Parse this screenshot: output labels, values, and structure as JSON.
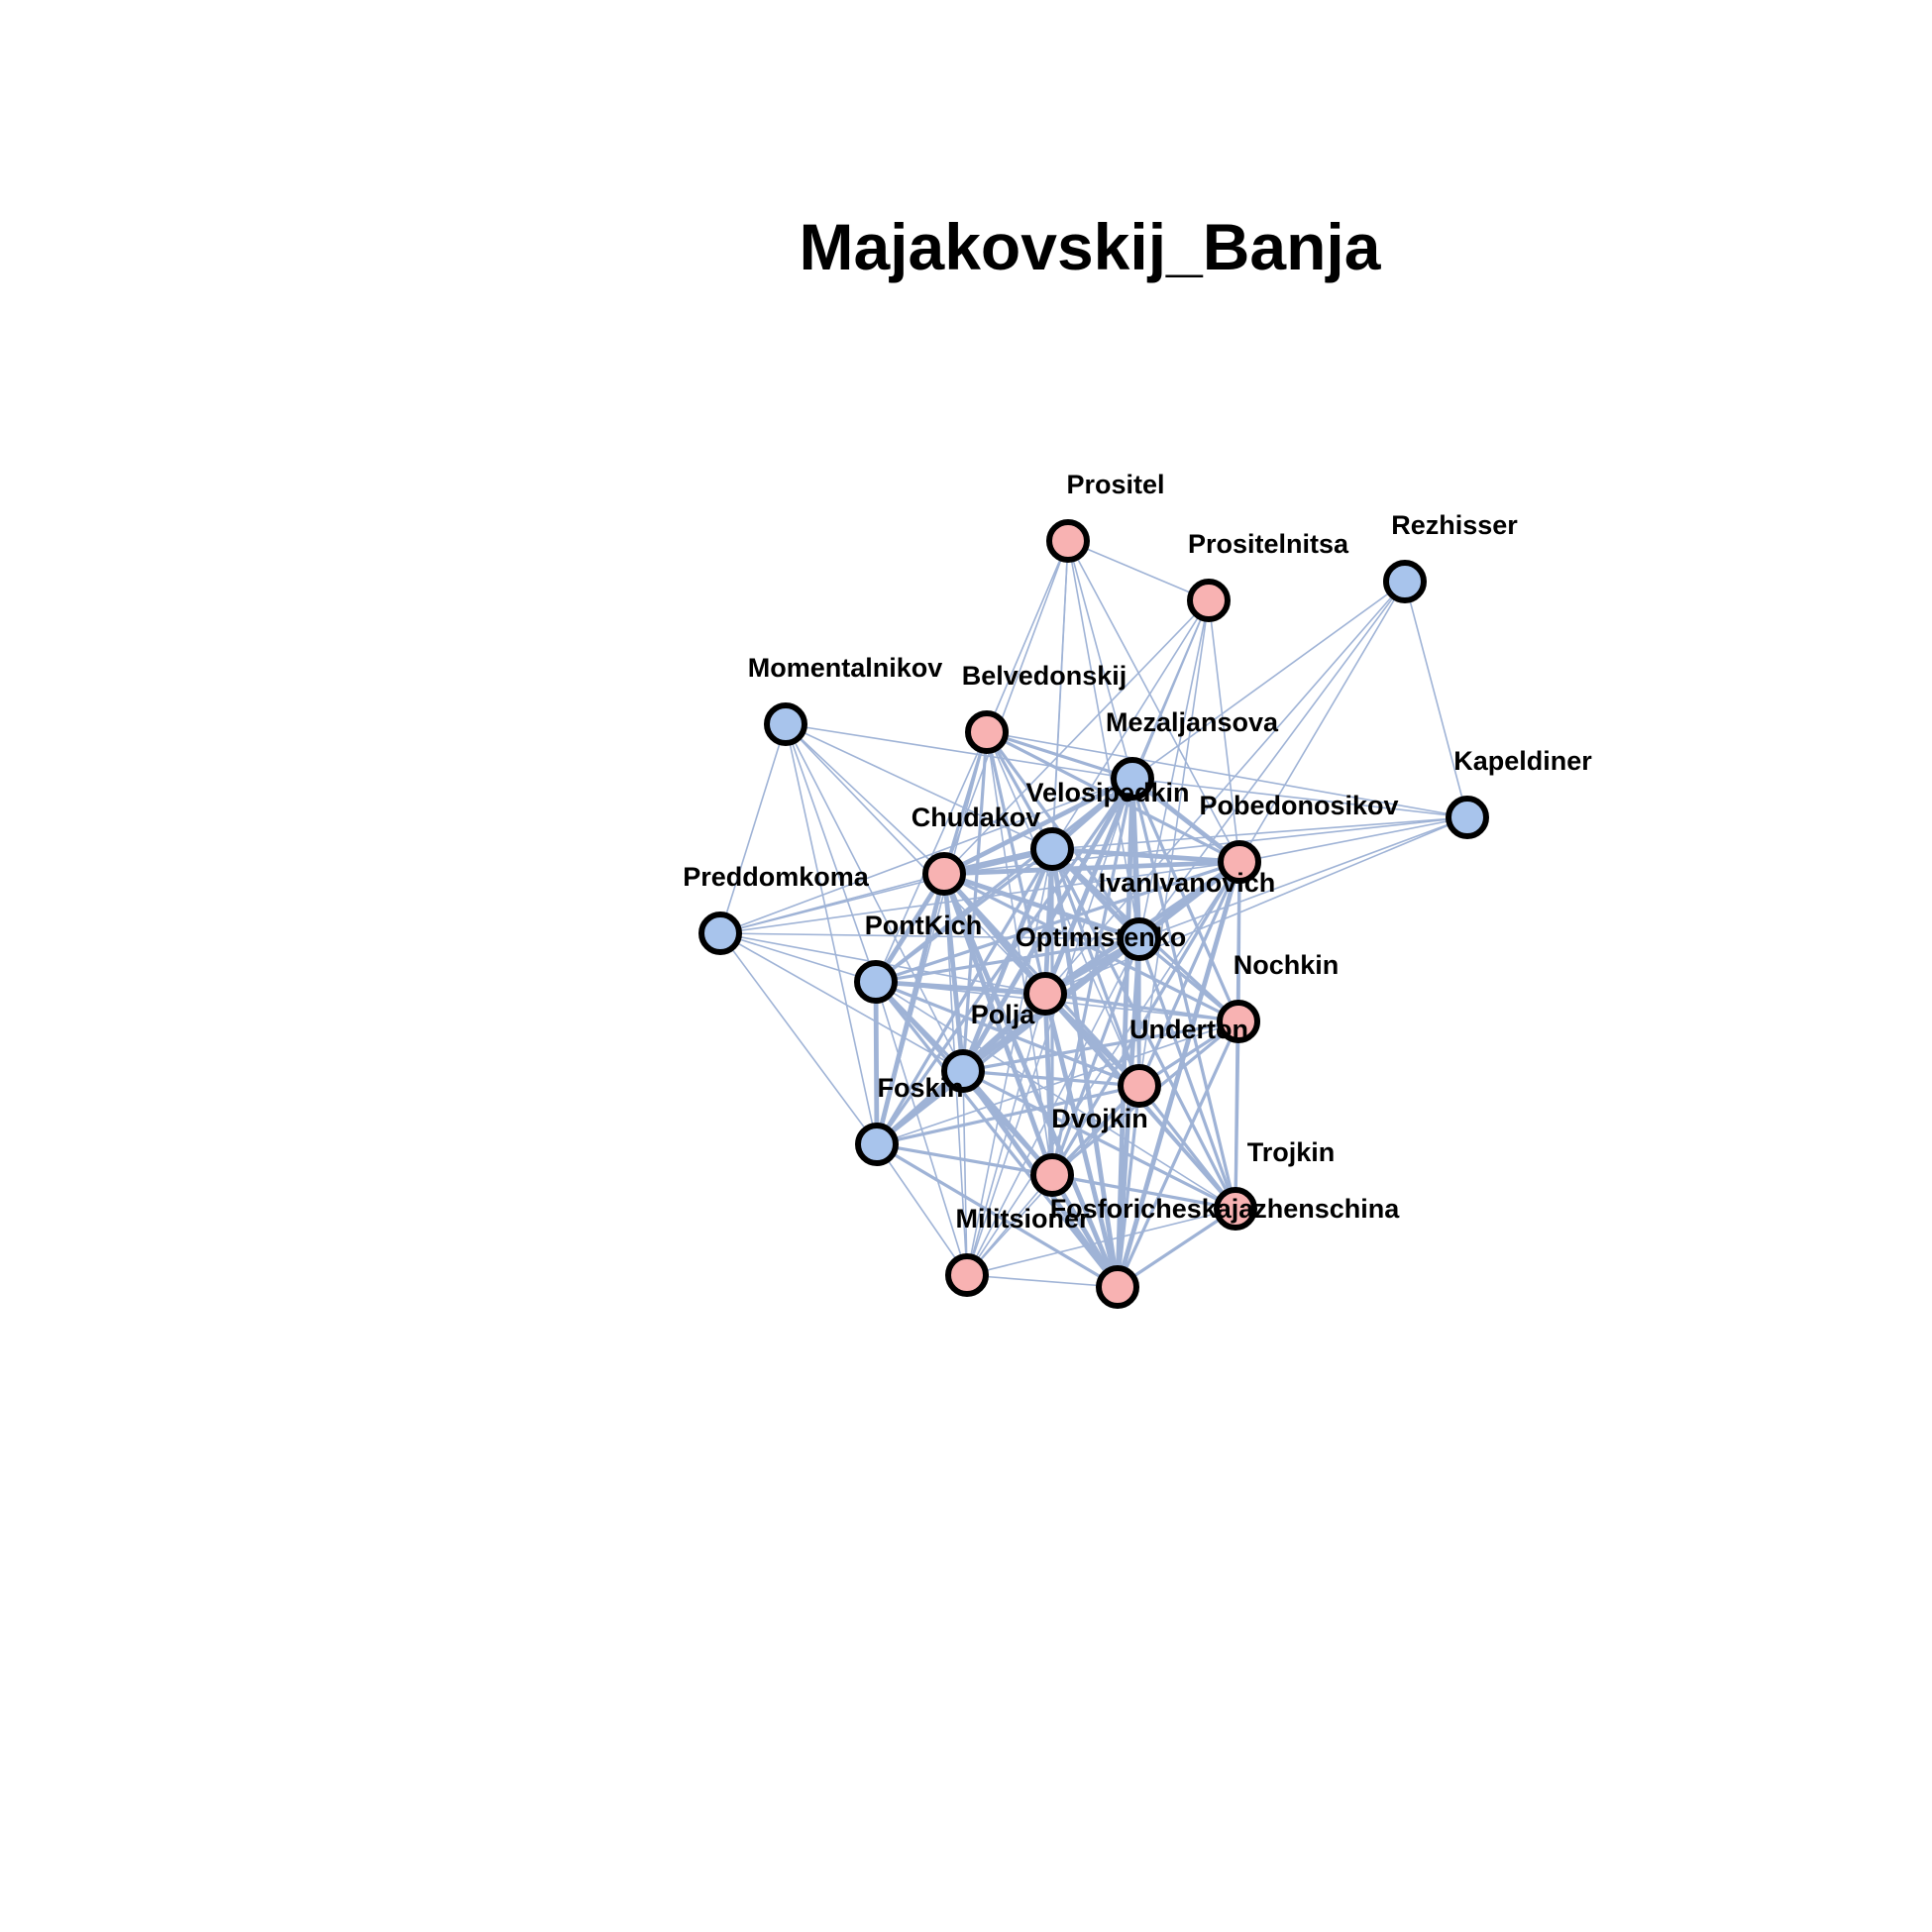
{
  "title": "Majakovskij_Banja",
  "colors": {
    "male": "#a8c4ec",
    "female": "#f8b2b2",
    "edge": "#9fb3d6",
    "border": "#000000"
  },
  "nodes": [
    {
      "id": "Prositel",
      "label": "Prositel",
      "group": "female"
    },
    {
      "id": "Prositelnitsa",
      "label": "Prositelnitsa",
      "group": "female"
    },
    {
      "id": "Rezhisser",
      "label": "Rezhisser",
      "group": "male"
    },
    {
      "id": "Momentalnikov",
      "label": "Momentalnikov",
      "group": "male"
    },
    {
      "id": "Belvedonskij",
      "label": "Belvedonskij",
      "group": "female"
    },
    {
      "id": "Mezaljansova",
      "label": "Mezaljansova",
      "group": "male"
    },
    {
      "id": "Kapeldiner",
      "label": "Kapeldiner",
      "group": "male"
    },
    {
      "id": "Velosipedkin",
      "label": "Velosipedkin",
      "group": "male"
    },
    {
      "id": "Pobedonosikov",
      "label": "Pobedonosikov",
      "group": "female"
    },
    {
      "id": "Chudakov",
      "label": "Chudakov",
      "group": "female"
    },
    {
      "id": "Preddomkoma",
      "label": "Preddomkoma",
      "group": "male"
    },
    {
      "id": "IvanIvanovich",
      "label": "IvanIvanovich",
      "group": "male"
    },
    {
      "id": "PontKich",
      "label": "PontKich",
      "group": "male"
    },
    {
      "id": "Optimistenko",
      "label": "Optimistenko",
      "group": "female"
    },
    {
      "id": "Nochkin",
      "label": "Nochkin",
      "group": "female"
    },
    {
      "id": "Polja",
      "label": "Polja",
      "group": "male"
    },
    {
      "id": "Underton",
      "label": "Underton",
      "group": "female"
    },
    {
      "id": "Foskin",
      "label": "Foskin",
      "group": "male"
    },
    {
      "id": "Dvojkin",
      "label": "Dvojkin",
      "group": "female"
    },
    {
      "id": "Trojkin",
      "label": "Trojkin",
      "group": "female"
    },
    {
      "id": "Militsioner",
      "label": "Militsioner",
      "group": "female"
    },
    {
      "id": "Fosforicheskajazhenschina",
      "label": "Fosforicheskajazhenschina",
      "group": "female"
    }
  ],
  "edges": [
    [
      "Prositel",
      "Prositelnitsa",
      1
    ],
    [
      "Prositel",
      "Belvedonskij",
      1
    ],
    [
      "Prositel",
      "Mezaljansova",
      1
    ],
    [
      "Prositel",
      "Velosipedkin",
      1
    ],
    [
      "Prositel",
      "Pobedonosikov",
      1
    ],
    [
      "Prositel",
      "Chudakov",
      1
    ],
    [
      "Prositel",
      "Optimistenko",
      1
    ],
    [
      "Prositel",
      "IvanIvanovich",
      1
    ],
    [
      "Prositelnitsa",
      "Mezaljansova",
      1
    ],
    [
      "Prositelnitsa",
      "Velosipedkin",
      1
    ],
    [
      "Prositelnitsa",
      "Pobedonosikov",
      1
    ],
    [
      "Prositelnitsa",
      "Optimistenko",
      1
    ],
    [
      "Prositelnitsa",
      "Chudakov",
      1
    ],
    [
      "Prositelnitsa",
      "IvanIvanovich",
      1
    ],
    [
      "Prositelnitsa",
      "Underton",
      1
    ],
    [
      "Rezhisser",
      "Kapeldiner",
      1
    ],
    [
      "Rezhisser",
      "Mezaljansova",
      1
    ],
    [
      "Rezhisser",
      "Pobedonosikov",
      1
    ],
    [
      "Rezhisser",
      "IvanIvanovich",
      1
    ],
    [
      "Rezhisser",
      "Optimistenko",
      1
    ],
    [
      "Momentalnikov",
      "Preddomkoma",
      1
    ],
    [
      "Momentalnikov",
      "Mezaljansova",
      1
    ],
    [
      "Momentalnikov",
      "Chudakov",
      1
    ],
    [
      "Momentalnikov",
      "PontKich",
      1
    ],
    [
      "Momentalnikov",
      "Polja",
      1
    ],
    [
      "Momentalnikov",
      "Foskin",
      1
    ],
    [
      "Momentalnikov",
      "Velosipedkin",
      1
    ],
    [
      "Momentalnikov",
      "Optimistenko",
      1
    ],
    [
      "Belvedonskij",
      "Mezaljansova",
      2
    ],
    [
      "Belvedonskij",
      "Velosipedkin",
      2
    ],
    [
      "Belvedonskij",
      "Pobedonosikov",
      2
    ],
    [
      "Belvedonskij",
      "Chudakov",
      2
    ],
    [
      "Belvedonskij",
      "IvanIvanovich",
      2
    ],
    [
      "Belvedonskij",
      "Optimistenko",
      2
    ],
    [
      "Belvedonskij",
      "PontKich",
      1
    ],
    [
      "Belvedonskij",
      "Polja",
      2
    ],
    [
      "Belvedonskij",
      "Underton",
      1
    ],
    [
      "Belvedonskij",
      "Kapeldiner",
      1
    ],
    [
      "Belvedonskij",
      "Foskin",
      1
    ],
    [
      "Belvedonskij",
      "Dvojkin",
      1
    ],
    [
      "Mezaljansova",
      "Velosipedkin",
      3
    ],
    [
      "Mezaljansova",
      "Pobedonosikov",
      3
    ],
    [
      "Mezaljansova",
      "Chudakov",
      3
    ],
    [
      "Mezaljansova",
      "IvanIvanovich",
      3
    ],
    [
      "Mezaljansova",
      "Optimistenko",
      3
    ],
    [
      "Mezaljansova",
      "Preddomkoma",
      1
    ],
    [
      "Mezaljansova",
      "PontKich",
      2
    ],
    [
      "Mezaljansova",
      "Polja",
      3
    ],
    [
      "Mezaljansova",
      "Nochkin",
      2
    ],
    [
      "Mezaljansova",
      "Underton",
      2
    ],
    [
      "Mezaljansova",
      "Foskin",
      2
    ],
    [
      "Mezaljansova",
      "Dvojkin",
      2
    ],
    [
      "Mezaljansova",
      "Trojkin",
      2
    ],
    [
      "Mezaljansova",
      "Militsioner",
      1
    ],
    [
      "Mezaljansova",
      "Fosforicheskajazhenschina",
      3
    ],
    [
      "Mezaljansova",
      "Kapeldiner",
      1
    ],
    [
      "Kapeldiner",
      "Pobedonosikov",
      1
    ],
    [
      "Kapeldiner",
      "Velosipedkin",
      1
    ],
    [
      "Kapeldiner",
      "IvanIvanovich",
      1
    ],
    [
      "Kapeldiner",
      "Chudakov",
      1
    ],
    [
      "Kapeldiner",
      "Optimistenko",
      1
    ],
    [
      "Velosipedkin",
      "Pobedonosikov",
      3
    ],
    [
      "Velosipedkin",
      "Chudakov",
      4
    ],
    [
      "Velosipedkin",
      "IvanIvanovich",
      3
    ],
    [
      "Velosipedkin",
      "Optimistenko",
      3
    ],
    [
      "Velosipedkin",
      "PontKich",
      2
    ],
    [
      "Velosipedkin",
      "Polja",
      3
    ],
    [
      "Velosipedkin",
      "Nochkin",
      2
    ],
    [
      "Velosipedkin",
      "Underton",
      2
    ],
    [
      "Velosipedkin",
      "Foskin",
      2
    ],
    [
      "Velosipedkin",
      "Dvojkin",
      2
    ],
    [
      "Velosipedkin",
      "Trojkin",
      2
    ],
    [
      "Velosipedkin",
      "Fosforicheskajazhenschina",
      3
    ],
    [
      "Velosipedkin",
      "Preddomkoma",
      1
    ],
    [
      "Velosipedkin",
      "Militsioner",
      1
    ],
    [
      "Pobedonosikov",
      "Chudakov",
      3
    ],
    [
      "Pobedonosikov",
      "IvanIvanovich",
      3
    ],
    [
      "Pobedonosikov",
      "Optimistenko",
      3
    ],
    [
      "Pobedonosikov",
      "PontKich",
      2
    ],
    [
      "Pobedonosikov",
      "Polja",
      3
    ],
    [
      "Pobedonosikov",
      "Nochkin",
      2
    ],
    [
      "Pobedonosikov",
      "Underton",
      2
    ],
    [
      "Pobedonosikov",
      "Foskin",
      2
    ],
    [
      "Pobedonosikov",
      "Dvojkin",
      2
    ],
    [
      "Pobedonosikov",
      "Trojkin",
      2
    ],
    [
      "Pobedonosikov",
      "Fosforicheskajazhenschina",
      3
    ],
    [
      "Pobedonosikov",
      "Militsioner",
      1
    ],
    [
      "Pobedonosikov",
      "Preddomkoma",
      1
    ],
    [
      "Chudakov",
      "IvanIvanovich",
      3
    ],
    [
      "Chudakov",
      "Optimistenko",
      3
    ],
    [
      "Chudakov",
      "Preddomkoma",
      1
    ],
    [
      "Chudakov",
      "PontKich",
      3
    ],
    [
      "Chudakov",
      "Polja",
      3
    ],
    [
      "Chudakov",
      "Nochkin",
      2
    ],
    [
      "Chudakov",
      "Underton",
      2
    ],
    [
      "Chudakov",
      "Foskin",
      3
    ],
    [
      "Chudakov",
      "Dvojkin",
      3
    ],
    [
      "Chudakov",
      "Trojkin",
      2
    ],
    [
      "Chudakov",
      "Militsioner",
      1
    ],
    [
      "Chudakov",
      "Fosforicheskajazhenschina",
      3
    ],
    [
      "Preddomkoma",
      "PontKich",
      1
    ],
    [
      "Preddomkoma",
      "Polja",
      1
    ],
    [
      "Preddomkoma",
      "Foskin",
      1
    ],
    [
      "Preddomkoma",
      "Optimistenko",
      1
    ],
    [
      "Preddomkoma",
      "IvanIvanovich",
      1
    ],
    [
      "IvanIvanovich",
      "Optimistenko",
      3
    ],
    [
      "IvanIvanovich",
      "PontKich",
      2
    ],
    [
      "IvanIvanovich",
      "Polja",
      3
    ],
    [
      "IvanIvanovich",
      "Nochkin",
      2
    ],
    [
      "IvanIvanovich",
      "Underton",
      2
    ],
    [
      "IvanIvanovich",
      "Foskin",
      2
    ],
    [
      "IvanIvanovich",
      "Dvojkin",
      2
    ],
    [
      "IvanIvanovich",
      "Trojkin",
      2
    ],
    [
      "IvanIvanovich",
      "Militsioner",
      1
    ],
    [
      "IvanIvanovich",
      "Fosforicheskajazhenschina",
      3
    ],
    [
      "PontKich",
      "Optimistenko",
      3
    ],
    [
      "PontKich",
      "Polja",
      2
    ],
    [
      "PontKich",
      "Nochkin",
      1
    ],
    [
      "PontKich",
      "Underton",
      2
    ],
    [
      "PontKich",
      "Foskin",
      3
    ],
    [
      "PontKich",
      "Dvojkin",
      2
    ],
    [
      "PontKich",
      "Trojkin",
      1
    ],
    [
      "PontKich",
      "Militsioner",
      1
    ],
    [
      "PontKich",
      "Fosforicheskajazhenschina",
      2
    ],
    [
      "Optimistenko",
      "Polja",
      3
    ],
    [
      "Optimistenko",
      "Nochkin",
      2
    ],
    [
      "Optimistenko",
      "Underton",
      3
    ],
    [
      "Optimistenko",
      "Foskin",
      3
    ],
    [
      "Optimistenko",
      "Dvojkin",
      3
    ],
    [
      "Optimistenko",
      "Trojkin",
      2
    ],
    [
      "Optimistenko",
      "Militsioner",
      1
    ],
    [
      "Optimistenko",
      "Fosforicheskajazhenschina",
      3
    ],
    [
      "Nochkin",
      "Polja",
      2
    ],
    [
      "Nochkin",
      "Underton",
      2
    ],
    [
      "Nochkin",
      "Foskin",
      1
    ],
    [
      "Nochkin",
      "Dvojkin",
      2
    ],
    [
      "Nochkin",
      "Trojkin",
      2
    ],
    [
      "Nochkin",
      "Fosforicheskajazhenschina",
      2
    ],
    [
      "Polja",
      "Underton",
      2
    ],
    [
      "Polja",
      "Foskin",
      3
    ],
    [
      "Polja",
      "Dvojkin",
      3
    ],
    [
      "Polja",
      "Trojkin",
      2
    ],
    [
      "Polja",
      "Militsioner",
      1
    ],
    [
      "Polja",
      "Fosforicheskajazhenschina",
      3
    ],
    [
      "Underton",
      "Foskin",
      2
    ],
    [
      "Underton",
      "Dvojkin",
      2
    ],
    [
      "Underton",
      "Trojkin",
      2
    ],
    [
      "Underton",
      "Militsioner",
      1
    ],
    [
      "Underton",
      "Fosforicheskajazhenschina",
      2
    ],
    [
      "Foskin",
      "Dvojkin",
      2
    ],
    [
      "Foskin",
      "Militsioner",
      1
    ],
    [
      "Foskin",
      "Fosforicheskajazhenschina",
      2
    ],
    [
      "Foskin",
      "Trojkin",
      1
    ],
    [
      "Dvojkin",
      "Trojkin",
      2
    ],
    [
      "Dvojkin",
      "Militsioner",
      1
    ],
    [
      "Dvojkin",
      "Fosforicheskajazhenschina",
      3
    ],
    [
      "Trojkin",
      "Fosforicheskajazhenschina",
      2
    ],
    [
      "Trojkin",
      "Militsioner",
      1
    ],
    [
      "Militsioner",
      "Fosforicheskajazhenschina",
      1
    ]
  ]
}
